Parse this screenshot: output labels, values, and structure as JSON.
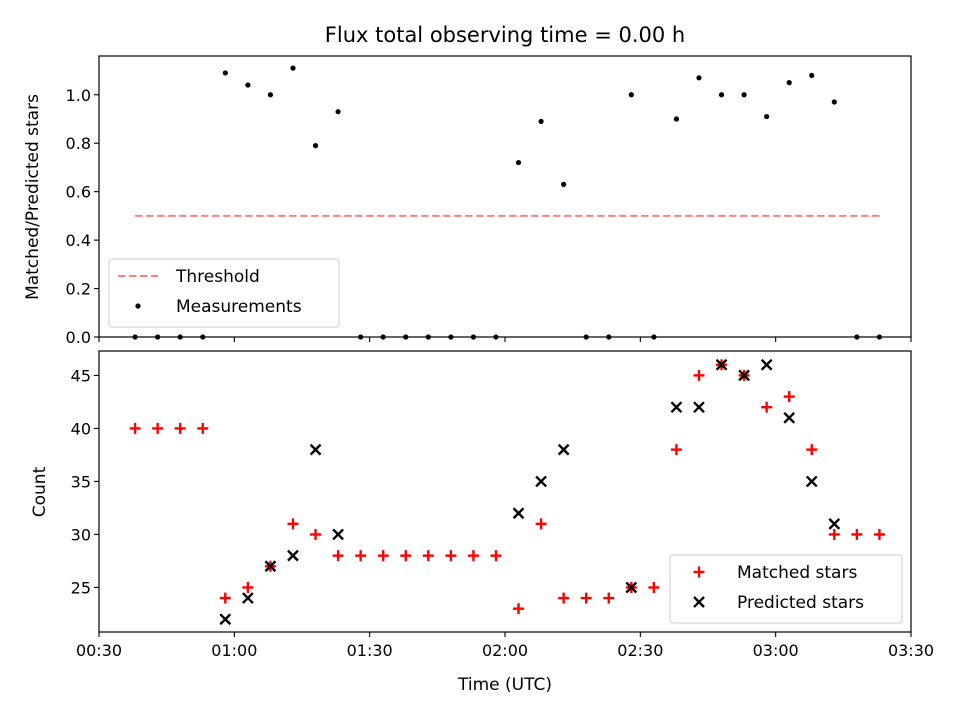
{
  "chart_data": [
    {
      "type": "scatter",
      "title": "Flux total observing time = 0.00 h",
      "xlabel": "",
      "ylabel": "Matched/Predicted stars",
      "xlim": [
        "00:30",
        "03:30"
      ],
      "ylim": [
        0,
        1.16
      ],
      "yticks": [
        "0.0",
        "0.2",
        "0.4",
        "0.6",
        "0.8",
        "1.0"
      ],
      "legend": {
        "position": "lower-left"
      },
      "threshold": {
        "name": "Threshold",
        "value": 0.5,
        "x_start": "00:38",
        "x_end": "03:23",
        "color": "#ff7f7f",
        "style": "dashed"
      },
      "series": [
        {
          "name": "Measurements",
          "marker": "dot",
          "color": "#000000",
          "points": [
            {
              "x": "00:38",
              "y": 0
            },
            {
              "x": "00:43",
              "y": 0
            },
            {
              "x": "00:48",
              "y": 0
            },
            {
              "x": "00:53",
              "y": 0
            },
            {
              "x": "00:58",
              "y": 1.09
            },
            {
              "x": "01:03",
              "y": 1.04
            },
            {
              "x": "01:08",
              "y": 1.0
            },
            {
              "x": "01:13",
              "y": 1.11
            },
            {
              "x": "01:18",
              "y": 0.79
            },
            {
              "x": "01:23",
              "y": 0.93
            },
            {
              "x": "01:28",
              "y": 0
            },
            {
              "x": "01:33",
              "y": 0
            },
            {
              "x": "01:38",
              "y": 0
            },
            {
              "x": "01:43",
              "y": 0
            },
            {
              "x": "01:48",
              "y": 0
            },
            {
              "x": "01:53",
              "y": 0
            },
            {
              "x": "01:58",
              "y": 0
            },
            {
              "x": "02:03",
              "y": 0.72
            },
            {
              "x": "02:08",
              "y": 0.89
            },
            {
              "x": "02:13",
              "y": 0.63
            },
            {
              "x": "02:18",
              "y": 0
            },
            {
              "x": "02:23",
              "y": 0
            },
            {
              "x": "02:28",
              "y": 1.0
            },
            {
              "x": "02:33",
              "y": 0
            },
            {
              "x": "02:38",
              "y": 0.9
            },
            {
              "x": "02:43",
              "y": 1.07
            },
            {
              "x": "02:48",
              "y": 1.0
            },
            {
              "x": "02:53",
              "y": 1.0
            },
            {
              "x": "02:58",
              "y": 0.91
            },
            {
              "x": "03:03",
              "y": 1.05
            },
            {
              "x": "03:08",
              "y": 1.08
            },
            {
              "x": "03:13",
              "y": 0.97
            },
            {
              "x": "03:18",
              "y": 0
            },
            {
              "x": "03:23",
              "y": 0
            }
          ]
        }
      ]
    },
    {
      "type": "scatter",
      "title": "",
      "xlabel": "Time (UTC)",
      "ylabel": "Count",
      "xlim": [
        "00:30",
        "03:30"
      ],
      "ylim": [
        20.8,
        47.3
      ],
      "xticks": [
        "00:30",
        "01:00",
        "01:30",
        "02:00",
        "02:30",
        "03:00",
        "03:30"
      ],
      "yticks": [
        "25",
        "30",
        "35",
        "40",
        "45"
      ],
      "legend": {
        "position": "lower-right"
      },
      "series": [
        {
          "name": "Matched stars",
          "marker": "plus",
          "color": "#ff0000",
          "points": [
            {
              "x": "00:38",
              "y": 40
            },
            {
              "x": "00:43",
              "y": 40
            },
            {
              "x": "00:48",
              "y": 40
            },
            {
              "x": "00:53",
              "y": 40
            },
            {
              "x": "00:58",
              "y": 24
            },
            {
              "x": "01:03",
              "y": 25
            },
            {
              "x": "01:08",
              "y": 27
            },
            {
              "x": "01:13",
              "y": 31
            },
            {
              "x": "01:18",
              "y": 30
            },
            {
              "x": "01:23",
              "y": 28
            },
            {
              "x": "01:28",
              "y": 28
            },
            {
              "x": "01:33",
              "y": 28
            },
            {
              "x": "01:38",
              "y": 28
            },
            {
              "x": "01:43",
              "y": 28
            },
            {
              "x": "01:48",
              "y": 28
            },
            {
              "x": "01:53",
              "y": 28
            },
            {
              "x": "01:58",
              "y": 28
            },
            {
              "x": "02:03",
              "y": 23
            },
            {
              "x": "02:08",
              "y": 31
            },
            {
              "x": "02:13",
              "y": 24
            },
            {
              "x": "02:18",
              "y": 24
            },
            {
              "x": "02:23",
              "y": 24
            },
            {
              "x": "02:28",
              "y": 25
            },
            {
              "x": "02:33",
              "y": 25
            },
            {
              "x": "02:38",
              "y": 38
            },
            {
              "x": "02:43",
              "y": 45
            },
            {
              "x": "02:48",
              "y": 46
            },
            {
              "x": "02:53",
              "y": 45
            },
            {
              "x": "02:58",
              "y": 42
            },
            {
              "x": "03:03",
              "y": 43
            },
            {
              "x": "03:08",
              "y": 38
            },
            {
              "x": "03:13",
              "y": 30
            },
            {
              "x": "03:18",
              "y": 30
            },
            {
              "x": "03:23",
              "y": 30
            }
          ]
        },
        {
          "name": "Predicted stars",
          "marker": "x",
          "color": "#000000",
          "points": [
            {
              "x": "00:58",
              "y": 22
            },
            {
              "x": "01:03",
              "y": 24
            },
            {
              "x": "01:08",
              "y": 27
            },
            {
              "x": "01:13",
              "y": 28
            },
            {
              "x": "01:18",
              "y": 38
            },
            {
              "x": "01:23",
              "y": 30
            },
            {
              "x": "02:03",
              "y": 32
            },
            {
              "x": "02:08",
              "y": 35
            },
            {
              "x": "02:13",
              "y": 38
            },
            {
              "x": "02:28",
              "y": 25
            },
            {
              "x": "02:38",
              "y": 42
            },
            {
              "x": "02:43",
              "y": 42
            },
            {
              "x": "02:48",
              "y": 46
            },
            {
              "x": "02:53",
              "y": 45
            },
            {
              "x": "02:58",
              "y": 46
            },
            {
              "x": "03:03",
              "y": 41
            },
            {
              "x": "03:08",
              "y": 35
            },
            {
              "x": "03:13",
              "y": 31
            }
          ]
        }
      ]
    }
  ]
}
